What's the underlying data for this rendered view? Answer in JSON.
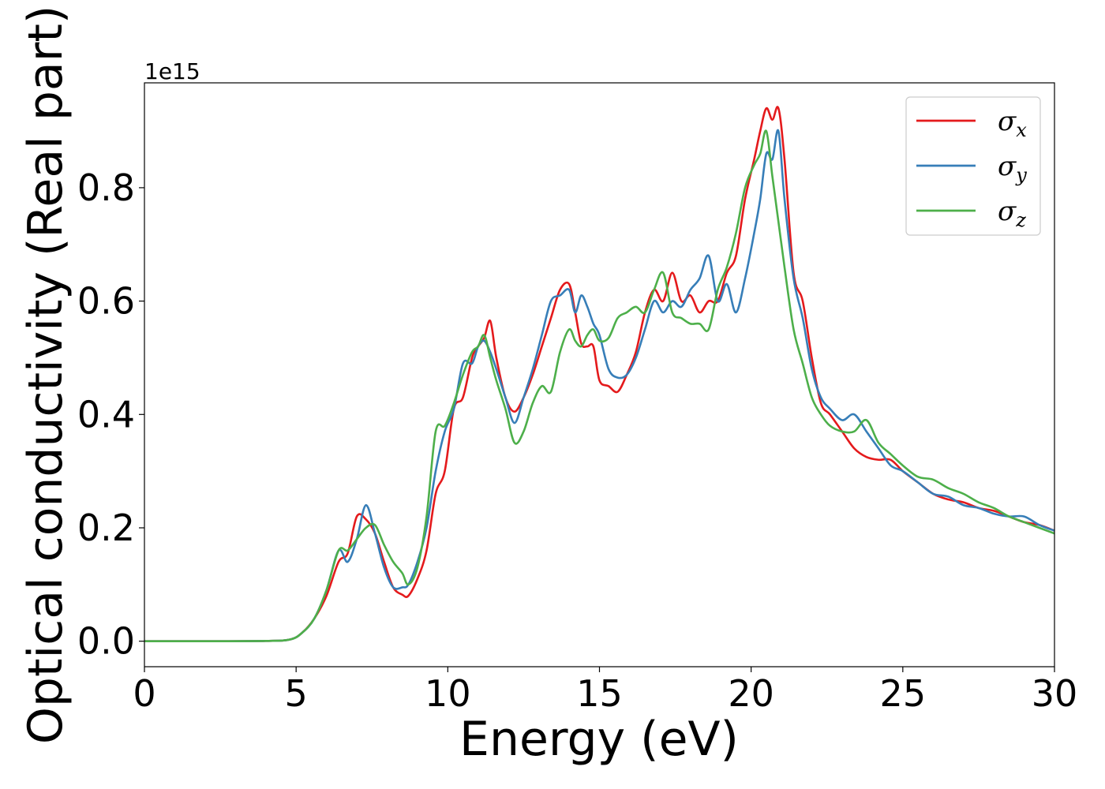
{
  "chart_data": {
    "type": "line",
    "title": "",
    "xlabel": "Energy (eV)",
    "ylabel": "Optical conductivity (Real part)",
    "y_offset_label": "1e15",
    "xlim": [
      0,
      30
    ],
    "ylim": [
      -0.045,
      0.985
    ],
    "y_multiplier": 1000000000000000.0,
    "grid": false,
    "legend_position": "top-right",
    "xticks": [
      0,
      5,
      10,
      15,
      20,
      25,
      30
    ],
    "xtick_labels": [
      "0",
      "5",
      "10",
      "15",
      "20",
      "25",
      "30"
    ],
    "yticks": [
      0.0,
      0.2,
      0.4,
      0.6,
      0.8
    ],
    "ytick_labels": [
      "0.0",
      "0.2",
      "0.4",
      "0.6",
      "0.8"
    ],
    "series": [
      {
        "name": "σx",
        "symbol": "σ",
        "subscript": "x",
        "color": "#e41a1c",
        "x": [
          0,
          2,
          4,
          4.8,
          5.2,
          5.6,
          6.0,
          6.4,
          6.7,
          7.0,
          7.3,
          7.6,
          7.9,
          8.2,
          8.5,
          8.7,
          9.0,
          9.3,
          9.6,
          9.9,
          10.2,
          10.5,
          10.8,
          11.0,
          11.2,
          11.4,
          11.6,
          11.9,
          12.2,
          12.5,
          12.8,
          13.1,
          13.4,
          13.7,
          14.0,
          14.2,
          14.4,
          14.6,
          14.8,
          15.0,
          15.3,
          15.6,
          15.9,
          16.2,
          16.5,
          16.8,
          17.1,
          17.4,
          17.7,
          18.0,
          18.3,
          18.6,
          18.9,
          19.2,
          19.5,
          19.8,
          20.1,
          20.3,
          20.5,
          20.7,
          20.9,
          21.1,
          21.4,
          21.7,
          22.0,
          22.3,
          22.6,
          23.0,
          23.4,
          23.8,
          24.2,
          24.6,
          25.0,
          25.5,
          26.0,
          26.5,
          27.0,
          27.5,
          28.0,
          28.5,
          29.0,
          29.5,
          30.0
        ],
        "y": [
          0.0,
          0.0,
          0.0005,
          0.003,
          0.015,
          0.04,
          0.08,
          0.14,
          0.155,
          0.22,
          0.215,
          0.19,
          0.14,
          0.095,
          0.082,
          0.08,
          0.11,
          0.16,
          0.26,
          0.3,
          0.41,
          0.43,
          0.5,
          0.52,
          0.535,
          0.565,
          0.5,
          0.43,
          0.405,
          0.43,
          0.47,
          0.52,
          0.57,
          0.62,
          0.63,
          0.58,
          0.525,
          0.52,
          0.52,
          0.46,
          0.45,
          0.44,
          0.47,
          0.51,
          0.58,
          0.62,
          0.6,
          0.65,
          0.6,
          0.61,
          0.58,
          0.6,
          0.6,
          0.65,
          0.68,
          0.78,
          0.85,
          0.9,
          0.94,
          0.92,
          0.94,
          0.85,
          0.65,
          0.6,
          0.5,
          0.42,
          0.4,
          0.37,
          0.34,
          0.325,
          0.32,
          0.32,
          0.3,
          0.28,
          0.26,
          0.25,
          0.245,
          0.235,
          0.23,
          0.22,
          0.21,
          0.205,
          0.195
        ]
      },
      {
        "name": "σy",
        "symbol": "σ",
        "subscript": "y",
        "color": "#377eb8",
        "x": [
          0,
          2,
          4,
          4.8,
          5.2,
          5.6,
          6.0,
          6.4,
          6.7,
          7.0,
          7.3,
          7.6,
          7.9,
          8.2,
          8.5,
          8.7,
          9.0,
          9.3,
          9.6,
          9.9,
          10.2,
          10.5,
          10.8,
          11.0,
          11.2,
          11.4,
          11.6,
          11.9,
          12.2,
          12.5,
          12.8,
          13.1,
          13.4,
          13.7,
          14.0,
          14.2,
          14.4,
          14.6,
          14.8,
          15.0,
          15.3,
          15.6,
          15.9,
          16.2,
          16.5,
          16.8,
          17.1,
          17.4,
          17.7,
          18.0,
          18.3,
          18.6,
          18.9,
          19.2,
          19.5,
          19.8,
          20.1,
          20.3,
          20.5,
          20.7,
          20.9,
          21.1,
          21.4,
          21.7,
          22.0,
          22.3,
          22.6,
          23.0,
          23.4,
          23.8,
          24.2,
          24.6,
          25.0,
          25.5,
          26.0,
          26.5,
          27.0,
          27.5,
          28.0,
          28.5,
          29.0,
          29.5,
          30.0
        ],
        "y": [
          0.0,
          0.0,
          0.0005,
          0.003,
          0.015,
          0.04,
          0.09,
          0.16,
          0.14,
          0.18,
          0.24,
          0.19,
          0.13,
          0.095,
          0.095,
          0.1,
          0.14,
          0.2,
          0.3,
          0.37,
          0.41,
          0.49,
          0.49,
          0.52,
          0.53,
          0.51,
          0.48,
          0.43,
          0.385,
          0.43,
          0.48,
          0.54,
          0.6,
          0.61,
          0.62,
          0.58,
          0.61,
          0.59,
          0.56,
          0.54,
          0.48,
          0.465,
          0.47,
          0.5,
          0.55,
          0.6,
          0.58,
          0.6,
          0.59,
          0.62,
          0.64,
          0.68,
          0.6,
          0.63,
          0.58,
          0.64,
          0.72,
          0.78,
          0.86,
          0.85,
          0.9,
          0.78,
          0.64,
          0.57,
          0.48,
          0.43,
          0.41,
          0.39,
          0.4,
          0.37,
          0.34,
          0.31,
          0.3,
          0.28,
          0.26,
          0.255,
          0.24,
          0.235,
          0.225,
          0.22,
          0.22,
          0.205,
          0.195
        ]
      },
      {
        "name": "σz",
        "symbol": "σ",
        "subscript": "z",
        "color": "#4daf4a",
        "x": [
          0,
          2,
          4,
          4.8,
          5.2,
          5.6,
          6.0,
          6.4,
          6.7,
          7.0,
          7.3,
          7.6,
          7.9,
          8.2,
          8.5,
          8.7,
          9.0,
          9.3,
          9.6,
          9.9,
          10.2,
          10.5,
          10.8,
          11.0,
          11.2,
          11.4,
          11.6,
          11.9,
          12.2,
          12.5,
          12.8,
          13.1,
          13.4,
          13.7,
          14.0,
          14.2,
          14.4,
          14.6,
          14.8,
          15.0,
          15.3,
          15.6,
          15.9,
          16.2,
          16.5,
          16.8,
          17.1,
          17.4,
          17.7,
          18.0,
          18.3,
          18.6,
          18.9,
          19.2,
          19.5,
          19.8,
          20.1,
          20.3,
          20.5,
          20.7,
          20.9,
          21.1,
          21.4,
          21.7,
          22.0,
          22.3,
          22.6,
          23.0,
          23.4,
          23.8,
          24.2,
          24.6,
          25.0,
          25.5,
          26.0,
          26.5,
          27.0,
          27.5,
          28.0,
          28.5,
          29.0,
          29.5,
          30.0
        ],
        "y": [
          0.0,
          0.0,
          0.0005,
          0.003,
          0.015,
          0.04,
          0.09,
          0.16,
          0.16,
          0.18,
          0.2,
          0.205,
          0.17,
          0.14,
          0.12,
          0.1,
          0.13,
          0.22,
          0.37,
          0.38,
          0.42,
          0.47,
          0.51,
          0.52,
          0.54,
          0.5,
          0.46,
          0.41,
          0.35,
          0.37,
          0.42,
          0.45,
          0.44,
          0.51,
          0.55,
          0.53,
          0.52,
          0.54,
          0.55,
          0.53,
          0.535,
          0.57,
          0.58,
          0.59,
          0.58,
          0.62,
          0.65,
          0.58,
          0.57,
          0.56,
          0.56,
          0.55,
          0.62,
          0.66,
          0.72,
          0.8,
          0.84,
          0.86,
          0.9,
          0.82,
          0.74,
          0.66,
          0.55,
          0.49,
          0.43,
          0.4,
          0.38,
          0.37,
          0.37,
          0.39,
          0.35,
          0.33,
          0.31,
          0.29,
          0.285,
          0.27,
          0.26,
          0.245,
          0.235,
          0.22,
          0.21,
          0.2,
          0.19
        ]
      }
    ]
  }
}
